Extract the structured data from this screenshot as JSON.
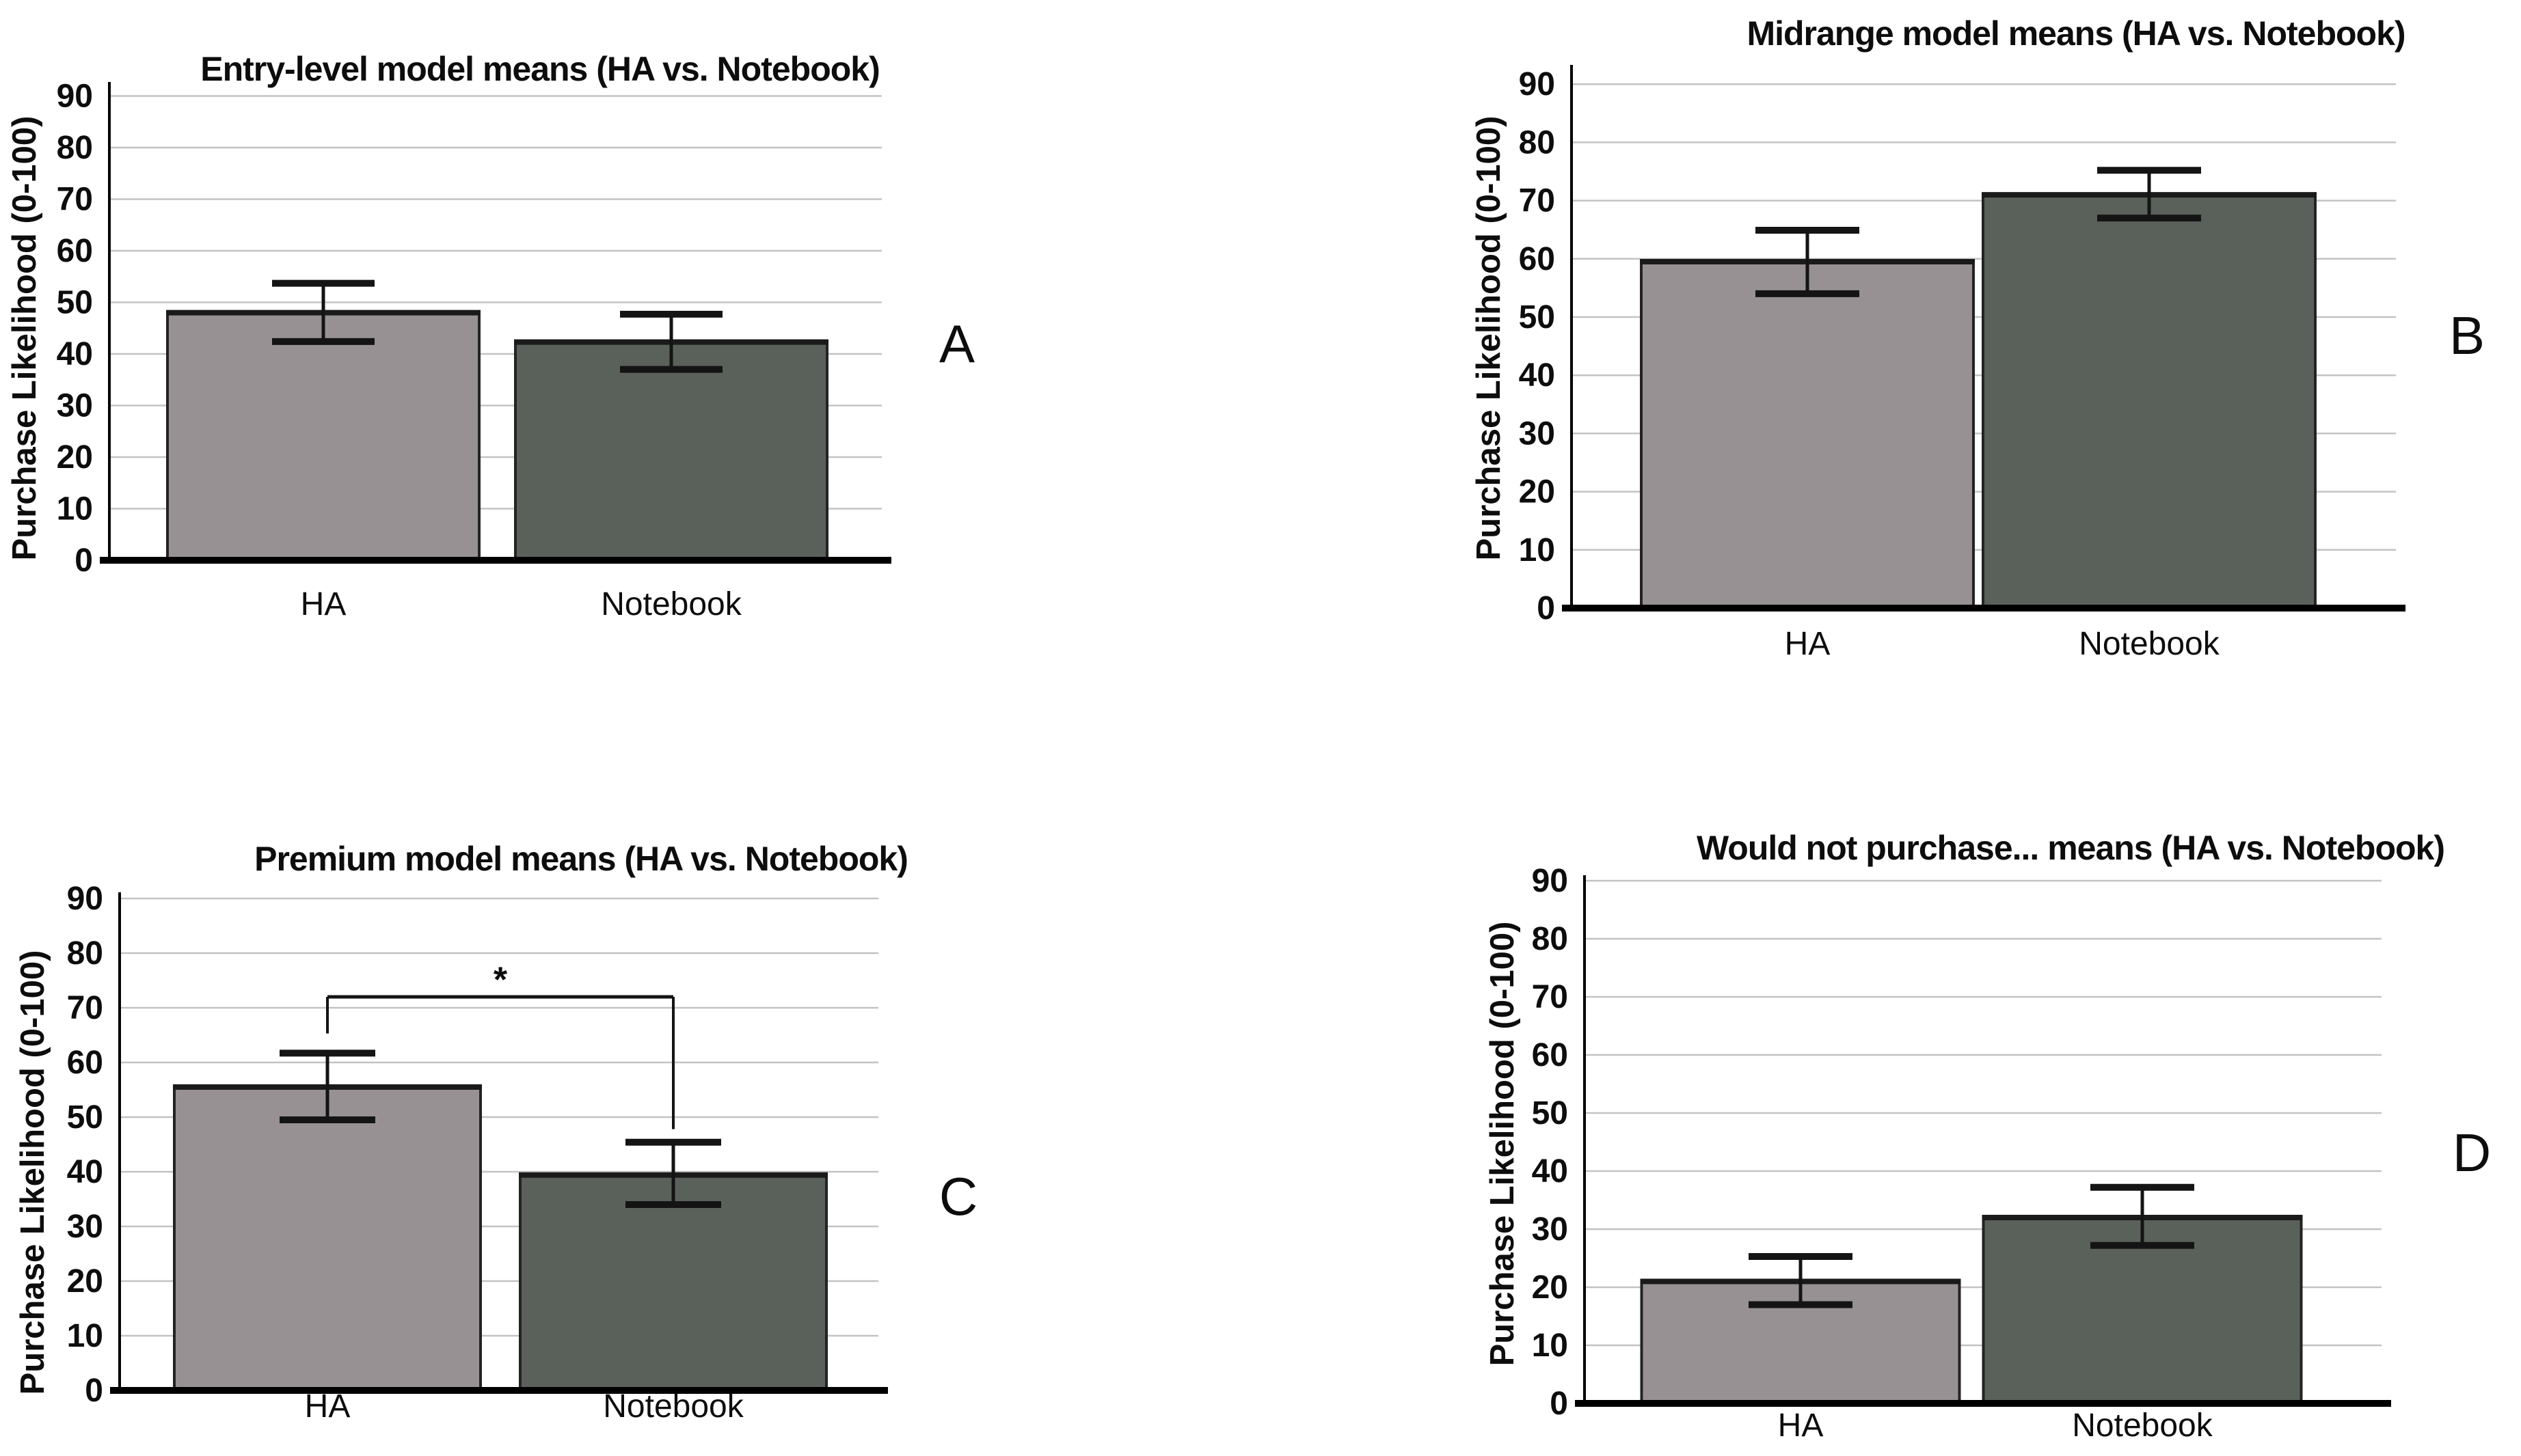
{
  "page": {
    "background": "#ffffff"
  },
  "colors": {
    "ha_bar_fill": "#979193",
    "notebook_bar_fill": "#5a615b",
    "bar_stroke": "#232323",
    "bar_top_edge": "#1a1a1a",
    "gridline": "#c3c3c3",
    "axis_line": "#000000",
    "baseline": "#000000",
    "error_bar": "#141414",
    "text": "#0d0d0d"
  },
  "chart_data": [
    {
      "panel_label": "A",
      "type": "bar",
      "title": "Entry-level model means (HA vs. Notebook)",
      "ylabel": "Purchase Likelihood (0-100)",
      "xlabel": "",
      "categories": [
        "HA",
        "Notebook"
      ],
      "values": [
        48,
        42.3
      ],
      "error_low": [
        42.4,
        37.0
      ],
      "error_high": [
        53.7,
        47.7
      ],
      "bar_colors": [
        "#979193",
        "#5a615b"
      ],
      "ylim": [
        0,
        95
      ],
      "yticks": [
        0,
        10,
        20,
        30,
        40,
        50,
        60,
        70,
        80,
        90
      ],
      "grid": true,
      "legend": null,
      "significance": null
    },
    {
      "panel_label": "B",
      "type": "bar",
      "title": "Midrange model means (HA vs. Notebook)",
      "ylabel": "Purchase Likelihood (0-100)",
      "xlabel": "",
      "categories": [
        "HA",
        "Notebook"
      ],
      "values": [
        59.5,
        71
      ],
      "error_low": [
        54.0,
        67.0
      ],
      "error_high": [
        64.9,
        75.2
      ],
      "bar_colors": [
        "#979193",
        "#5a615b"
      ],
      "ylim": [
        0,
        95
      ],
      "yticks": [
        0,
        10,
        20,
        30,
        40,
        50,
        60,
        70,
        80,
        90
      ],
      "grid": true,
      "legend": null,
      "significance": null
    },
    {
      "panel_label": "C",
      "type": "bar",
      "title": "Premium model means (HA vs. Notebook)",
      "ylabel": "Purchase Likelihood (0-100)",
      "xlabel": "",
      "categories": [
        "HA",
        "Notebook"
      ],
      "values": [
        55.5,
        39.4
      ],
      "error_low": [
        49.5,
        34.0
      ],
      "error_high": [
        61.7,
        45.4
      ],
      "bar_colors": [
        "#979193",
        "#5a615b"
      ],
      "ylim": [
        0,
        95
      ],
      "yticks": [
        0,
        10,
        20,
        30,
        40,
        50,
        60,
        70,
        80,
        90
      ],
      "grid": true,
      "legend": null,
      "significance": {
        "label": "*",
        "between": [
          "HA",
          "Notebook"
        ],
        "bracket_y": 72,
        "label_y": 75.2,
        "drop_left_to": 65.3,
        "drop_right_to": 47.8
      }
    },
    {
      "panel_label": "D",
      "type": "bar",
      "title": "Would not purchase... means (HA vs. Notebook)",
      "ylabel": "Purchase Likelihood (0-100)",
      "xlabel": "",
      "categories": [
        "HA",
        "Notebook"
      ],
      "values": [
        21,
        32
      ],
      "error_low": [
        17.0,
        27.2
      ],
      "error_high": [
        25.3,
        37.2
      ],
      "bar_colors": [
        "#979193",
        "#5a615b"
      ],
      "ylim": [
        0,
        95
      ],
      "yticks": [
        0,
        10,
        20,
        30,
        40,
        50,
        60,
        70,
        80,
        90
      ],
      "grid": true,
      "legend": null,
      "significance": null
    }
  ]
}
